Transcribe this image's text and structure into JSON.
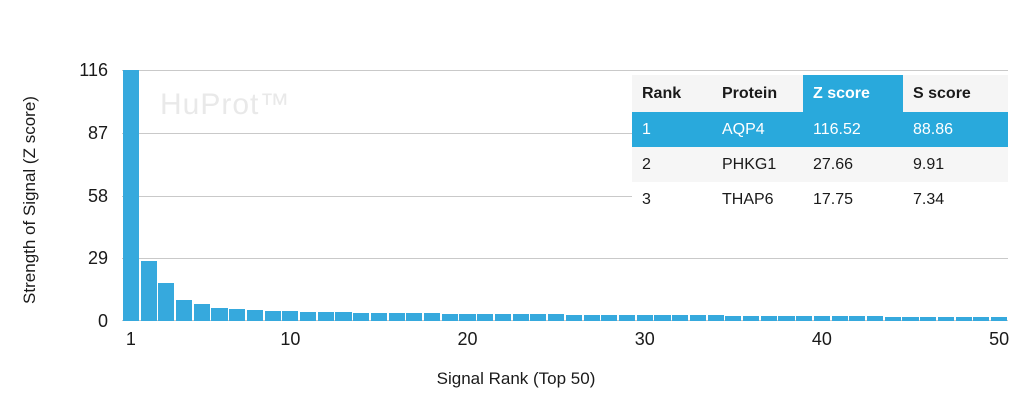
{
  "watermark": {
    "text": "HuProt™",
    "color": "#e9e9e9"
  },
  "chart_data": {
    "type": "bar",
    "title": "",
    "xlabel": "Signal Rank (Top 50)",
    "ylabel": "Strength of Signal (Z score)",
    "ylim": [
      0,
      116
    ],
    "yticks": [
      116,
      87,
      58,
      29,
      0
    ],
    "xticks": [
      1,
      10,
      20,
      30,
      40,
      50
    ],
    "grid": "horizontal",
    "legend": "none",
    "bar_color": "#36a9dd",
    "gridline_color": "#c9c9c9",
    "x": [
      1,
      2,
      3,
      4,
      5,
      6,
      7,
      8,
      9,
      10,
      11,
      12,
      13,
      14,
      15,
      16,
      17,
      18,
      19,
      20,
      21,
      22,
      23,
      24,
      25,
      26,
      27,
      28,
      29,
      30,
      31,
      32,
      33,
      34,
      35,
      36,
      37,
      38,
      39,
      40,
      41,
      42,
      43,
      44,
      45,
      46,
      47,
      48,
      49,
      50
    ],
    "values": [
      116.52,
      27.66,
      17.75,
      9.5,
      7.8,
      5.9,
      5.4,
      5.1,
      4.7,
      4.5,
      4.3,
      4.1,
      4.0,
      3.9,
      3.8,
      3.7,
      3.6,
      3.5,
      3.45,
      3.4,
      3.3,
      3.25,
      3.2,
      3.1,
      3.05,
      3.0,
      2.95,
      2.9,
      2.85,
      2.8,
      2.7,
      2.65,
      2.6,
      2.55,
      2.5,
      2.45,
      2.4,
      2.35,
      2.3,
      2.25,
      2.2,
      2.15,
      2.1,
      2.05,
      2.0,
      1.95,
      1.9,
      1.85,
      1.8,
      1.75
    ]
  },
  "table": {
    "columns": [
      "Rank",
      "Protein",
      "Z score",
      "S score"
    ],
    "rows": [
      [
        "1",
        "AQP4",
        "116.52",
        "88.86"
      ],
      [
        "2",
        "PHKG1",
        "27.66",
        "9.91"
      ],
      [
        "3",
        "THAP6",
        "17.75",
        "7.34"
      ]
    ],
    "highlight_row": 0,
    "highlight_column": 2,
    "highlight_color": "#29a9dc",
    "highlight_text_color": "#ffffff",
    "header_bg": "#f5f5f5",
    "row_bgs": [
      "#29a9dc",
      "#f6f6f6",
      "#ffffff"
    ]
  }
}
